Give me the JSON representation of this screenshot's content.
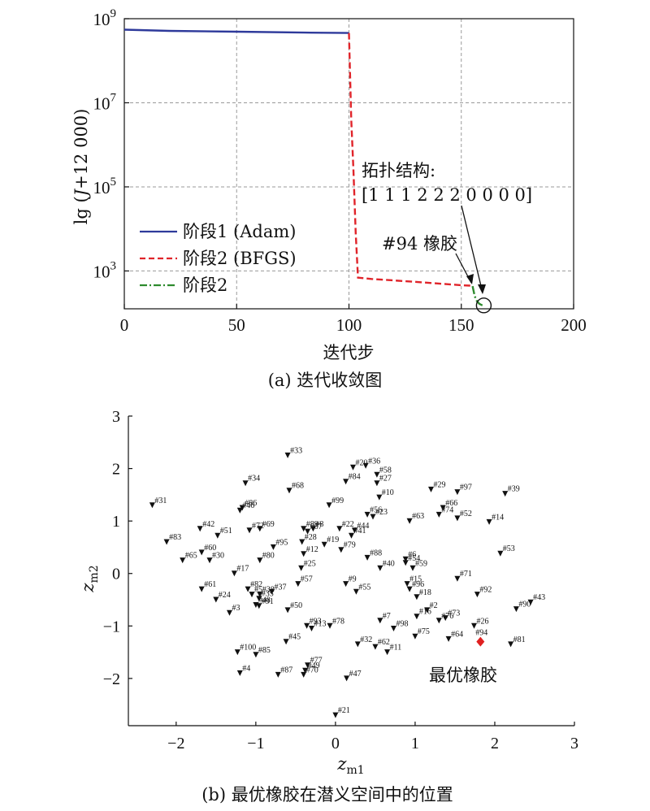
{
  "chart_data": [
    {
      "type": "line",
      "caption": "(a) 迭代收敛图",
      "xlabel": "迭代步",
      "ylabel_main": "lg (",
      "ylabel_var": "J",
      "ylabel_rest": "+12 000)",
      "xlim": [
        0,
        200
      ],
      "ylim_log10": [
        2.1,
        9.0
      ],
      "xticks": [
        0,
        50,
        100,
        150,
        200
      ],
      "xtick_labels": [
        "0",
        "50",
        "100",
        "150",
        "200"
      ],
      "yticks_log10": [
        3,
        5,
        7,
        9
      ],
      "ytick_base": "10",
      "ytick_exps": [
        "3",
        "5",
        "7",
        "9"
      ],
      "grid": true,
      "legend_position": "left-lower",
      "series": [
        {
          "name": "阶段1 (Adam)",
          "color": "#2e3a9b",
          "dash": "solid",
          "points": [
            [
              0,
              8.74
            ],
            [
              20,
              8.71
            ],
            [
              50,
              8.69
            ],
            [
              80,
              8.67
            ],
            [
              100,
              8.66
            ]
          ]
        },
        {
          "name": "阶段2 (BFGS)",
          "color": "#e0242a",
          "dash": "dashed",
          "points": [
            [
              100,
              8.66
            ],
            [
              101,
              6.6
            ],
            [
              102,
              5.4
            ],
            [
              103,
              3.9
            ],
            [
              104,
              2.84
            ],
            [
              110,
              2.81
            ],
            [
              130,
              2.74
            ],
            [
              150,
              2.66
            ],
            [
              154,
              2.65
            ]
          ]
        },
        {
          "name": "阶段2",
          "color": "#2e8b2e",
          "dash": "dashdot",
          "points": [
            [
              155,
              2.64
            ],
            [
              156,
              2.4
            ],
            [
              157,
              2.28
            ],
            [
              158,
              2.22
            ],
            [
              159,
              2.19
            ],
            [
              160,
              2.18
            ]
          ]
        }
      ],
      "annotations": {
        "topology_title": "拓扑结构:",
        "topology_vector": "[1 1 1 2 2 2 0 0 0 0]",
        "rubber_label": "#94 橡胶",
        "marker_point": [
          160,
          2.18
        ]
      }
    },
    {
      "type": "scatter",
      "caption": "(b) 最优橡胶在潜义空间中的位置",
      "xlabel": "z",
      "xlabel_sub": "m1",
      "ylabel": "z",
      "ylabel_sub": "m2",
      "xlim": [
        -2.6,
        3.0
      ],
      "ylim": [
        -2.9,
        3.0
      ],
      "xticks": [
        -2,
        -1,
        0,
        1,
        2,
        3
      ],
      "xtick_labels": [
        "−2",
        "−1",
        "0",
        "1",
        "2",
        "3"
      ],
      "yticks": [
        -2,
        -1,
        0,
        1,
        2,
        3
      ],
      "ytick_labels": [
        "−2",
        "−1",
        "0",
        "1",
        "2",
        "3"
      ],
      "grid": false,
      "optimal_label": "最优橡胶",
      "optimal_color": "#e02020",
      "optimal_point": {
        "id": "#94",
        "x": 1.82,
        "y": -1.3
      },
      "points": [
        {
          "id": "#33",
          "x": -0.6,
          "y": 2.25
        },
        {
          "id": "#20",
          "x": 0.22,
          "y": 2.02
        },
        {
          "id": "#36",
          "x": 0.38,
          "y": 2.05
        },
        {
          "id": "#58",
          "x": 0.52,
          "y": 1.88
        },
        {
          "id": "#34",
          "x": -1.13,
          "y": 1.72
        },
        {
          "id": "#84",
          "x": 0.13,
          "y": 1.75
        },
        {
          "id": "#27",
          "x": 0.52,
          "y": 1.72
        },
        {
          "id": "#68",
          "x": -0.58,
          "y": 1.58
        },
        {
          "id": "#29",
          "x": 1.2,
          "y": 1.6
        },
        {
          "id": "#97",
          "x": 1.53,
          "y": 1.55
        },
        {
          "id": "#39",
          "x": 2.13,
          "y": 1.52
        },
        {
          "id": "#10",
          "x": 0.55,
          "y": 1.45
        },
        {
          "id": "#31",
          "x": -2.3,
          "y": 1.3
        },
        {
          "id": "#99",
          "x": -0.08,
          "y": 1.3
        },
        {
          "id": "#86",
          "x": -1.17,
          "y": 1.25
        },
        {
          "id": "#46",
          "x": -1.2,
          "y": 1.2
        },
        {
          "id": "#66",
          "x": 1.35,
          "y": 1.25
        },
        {
          "id": "#74",
          "x": 1.3,
          "y": 1.12
        },
        {
          "id": "#56",
          "x": 0.4,
          "y": 1.12
        },
        {
          "id": "#23",
          "x": 0.47,
          "y": 1.08
        },
        {
          "id": "#63",
          "x": 0.93,
          "y": 1.0
        },
        {
          "id": "#52",
          "x": 1.53,
          "y": 1.05
        },
        {
          "id": "#14",
          "x": 1.93,
          "y": 0.98
        },
        {
          "id": "#42",
          "x": -1.7,
          "y": 0.85
        },
        {
          "id": "#72",
          "x": -1.08,
          "y": 0.82
        },
        {
          "id": "#69",
          "x": -0.95,
          "y": 0.85
        },
        {
          "id": "#89",
          "x": -0.4,
          "y": 0.85
        },
        {
          "id": "#8",
          "x": -0.28,
          "y": 0.85
        },
        {
          "id": "#22",
          "x": 0.05,
          "y": 0.85
        },
        {
          "id": "#44",
          "x": 0.24,
          "y": 0.82
        },
        {
          "id": "#67",
          "x": -0.35,
          "y": 0.8
        },
        {
          "id": "#41",
          "x": 0.2,
          "y": 0.72
        },
        {
          "id": "#51",
          "x": -1.48,
          "y": 0.72
        },
        {
          "id": "#28",
          "x": -0.42,
          "y": 0.6
        },
        {
          "id": "#19",
          "x": -0.14,
          "y": 0.55
        },
        {
          "id": "#83",
          "x": -2.12,
          "y": 0.6
        },
        {
          "id": "#95",
          "x": -0.78,
          "y": 0.5
        },
        {
          "id": "#79",
          "x": 0.07,
          "y": 0.45
        },
        {
          "id": "#53",
          "x": 2.07,
          "y": 0.38
        },
        {
          "id": "#60",
          "x": -1.68,
          "y": 0.4
        },
        {
          "id": "#12",
          "x": -0.4,
          "y": 0.37
        },
        {
          "id": "#88",
          "x": 0.4,
          "y": 0.3
        },
        {
          "id": "#65",
          "x": -1.92,
          "y": 0.25
        },
        {
          "id": "#30",
          "x": -1.58,
          "y": 0.25
        },
        {
          "id": "#80",
          "x": -0.95,
          "y": 0.25
        },
        {
          "id": "#6",
          "x": 0.88,
          "y": 0.27
        },
        {
          "id": "#54",
          "x": 0.88,
          "y": 0.2
        },
        {
          "id": "#25",
          "x": -0.43,
          "y": 0.1
        },
        {
          "id": "#40",
          "x": 0.56,
          "y": 0.1
        },
        {
          "id": "#59",
          "x": 0.97,
          "y": 0.1
        },
        {
          "id": "#17",
          "x": -1.27,
          "y": 0.0
        },
        {
          "id": "#71",
          "x": 1.53,
          "y": -0.1
        },
        {
          "id": "#9",
          "x": 0.13,
          "y": -0.2
        },
        {
          "id": "#57",
          "x": -0.47,
          "y": -0.2
        },
        {
          "id": "#61",
          "x": -1.68,
          "y": -0.3
        },
        {
          "id": "#82",
          "x": -1.1,
          "y": -0.3
        },
        {
          "id": "#15",
          "x": 0.9,
          "y": -0.2
        },
        {
          "id": "#96",
          "x": 0.93,
          "y": -0.3
        },
        {
          "id": "#55",
          "x": 0.26,
          "y": -0.35
        },
        {
          "id": "#37",
          "x": -0.8,
          "y": -0.35
        },
        {
          "id": "#5",
          "x": -1.05,
          "y": -0.4
        },
        {
          "id": "#38",
          "x": -0.95,
          "y": -0.4
        },
        {
          "id": "#18",
          "x": 1.02,
          "y": -0.45
        },
        {
          "id": "#92",
          "x": 1.78,
          "y": -0.4
        },
        {
          "id": "#35",
          "x": -0.96,
          "y": -0.48
        },
        {
          "id": "#24",
          "x": -1.5,
          "y": -0.5
        },
        {
          "id": "#48",
          "x": -1.0,
          "y": -0.6
        },
        {
          "id": "#91",
          "x": -0.96,
          "y": -0.62
        },
        {
          "id": "#43",
          "x": 2.45,
          "y": -0.55
        },
        {
          "id": "#90",
          "x": 2.27,
          "y": -0.68
        },
        {
          "id": "#3",
          "x": -1.33,
          "y": -0.75
        },
        {
          "id": "#50",
          "x": -0.6,
          "y": -0.7
        },
        {
          "id": "#2",
          "x": 1.15,
          "y": -0.7
        },
        {
          "id": "#16",
          "x": 1.02,
          "y": -0.82
        },
        {
          "id": "#73",
          "x": 1.38,
          "y": -0.85
        },
        {
          "id": "#76",
          "x": 1.3,
          "y": -0.9
        },
        {
          "id": "#7",
          "x": 0.56,
          "y": -0.9
        },
        {
          "id": "#26",
          "x": 1.74,
          "y": -1.0
        },
        {
          "id": "#93",
          "x": -0.36,
          "y": -1.0
        },
        {
          "id": "#13",
          "x": -0.3,
          "y": -1.05
        },
        {
          "id": "#78",
          "x": -0.07,
          "y": -1.0
        },
        {
          "id": "#98",
          "x": 0.73,
          "y": -1.05
        },
        {
          "id": "#75",
          "x": 1.0,
          "y": -1.2
        },
        {
          "id": "#64",
          "x": 1.42,
          "y": -1.25
        },
        {
          "id": "#45",
          "x": -0.62,
          "y": -1.3
        },
        {
          "id": "#32",
          "x": 0.28,
          "y": -1.35
        },
        {
          "id": "#62",
          "x": 0.5,
          "y": -1.4
        },
        {
          "id": "#81",
          "x": 2.2,
          "y": -1.35
        },
        {
          "id": "#11",
          "x": 0.65,
          "y": -1.5
        },
        {
          "id": "#100",
          "x": -1.23,
          "y": -1.5
        },
        {
          "id": "#85",
          "x": -1.0,
          "y": -1.55
        },
        {
          "id": "#77",
          "x": -0.35,
          "y": -1.75
        },
        {
          "id": "#49",
          "x": -0.38,
          "y": -1.85
        },
        {
          "id": "#4",
          "x": -1.2,
          "y": -1.9
        },
        {
          "id": "#87",
          "x": -0.72,
          "y": -1.93
        },
        {
          "id": "#70",
          "x": -0.4,
          "y": -1.93
        },
        {
          "id": "#47",
          "x": 0.14,
          "y": -2.0
        },
        {
          "id": "#21",
          "x": 0.0,
          "y": -2.7
        }
      ]
    }
  ]
}
